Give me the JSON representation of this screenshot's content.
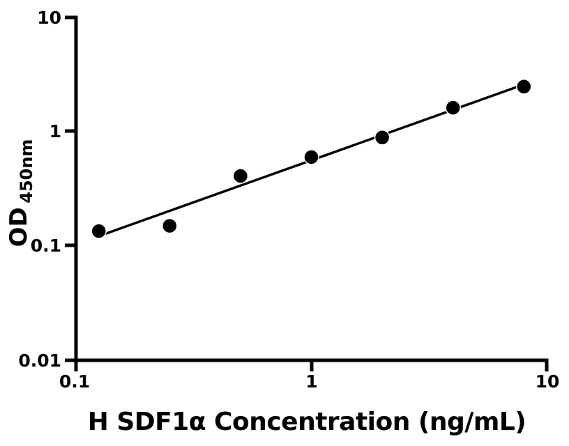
{
  "figure": {
    "background": "#ffffff",
    "foreground": "#000000"
  },
  "chart_data": {
    "type": "scatter",
    "title": "",
    "xlabel": "H SDF1α Concentration (ng/mL)",
    "ylabel": "OD450nm",
    "ylabel_main": "OD",
    "ylabel_sub": "450nm",
    "x_scale": "log",
    "y_scale": "log",
    "xlim": [
      0.1,
      10
    ],
    "ylim": [
      0.01,
      10
    ],
    "x_ticks": [
      "0.1",
      "1",
      "10"
    ],
    "y_ticks": [
      "10",
      "1",
      "0.1",
      "0.01"
    ],
    "grid": false,
    "legend": false,
    "marker": {
      "shape": "circle",
      "color": "#000000",
      "radius_px": 10.5
    },
    "line_color": "#000000",
    "points": [
      {
        "x": 0.125,
        "y": 0.135
      },
      {
        "x": 0.25,
        "y": 0.15
      },
      {
        "x": 0.5,
        "y": 0.41
      },
      {
        "x": 1,
        "y": 0.6
      },
      {
        "x": 2,
        "y": 0.89
      },
      {
        "x": 4,
        "y": 1.62
      },
      {
        "x": 8,
        "y": 2.48
      }
    ],
    "fit_line": {
      "x1": 0.125,
      "y1": 0.122,
      "x2": 8,
      "y2": 2.59
    }
  }
}
